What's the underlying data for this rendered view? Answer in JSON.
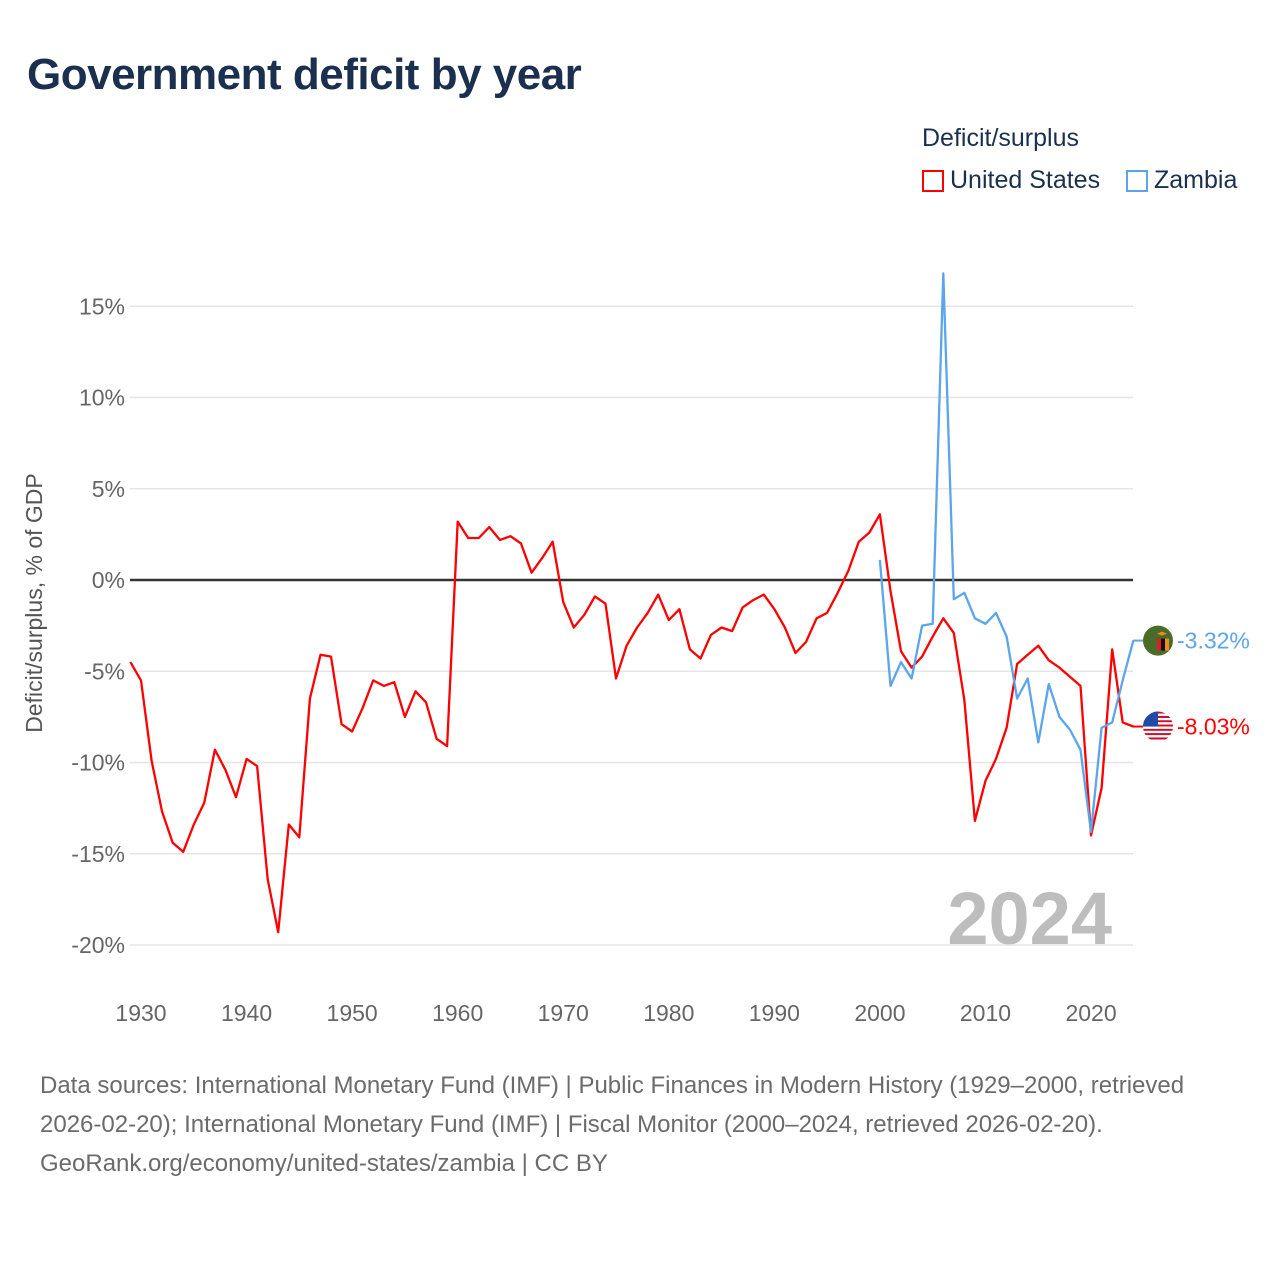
{
  "title": "Government deficit by year",
  "legend": {
    "title": "Deficit/surplus",
    "items": [
      {
        "label": "United States",
        "color": "#ff0000"
      },
      {
        "label": "Zambia",
        "color": "#5aa5ec"
      }
    ]
  },
  "year_watermark": "2024",
  "footer": {
    "sources": "Data sources: International Monetary Fund (IMF) | Public Finances in Modern History (1929–2000, retrieved 2026-02-20); International Monetary Fund (IMF) | Fiscal Monitor (2000–2024, retrieved 2026-02-20).",
    "credit": "GeoRank.org/economy/united-states/zambia | CC BY"
  },
  "chart_data": {
    "type": "line",
    "title": "Government deficit by year",
    "xlabel": "",
    "ylabel": "Deficit/surplus, % of GDP",
    "xlim": [
      1929,
      2024
    ],
    "ylim": [
      -20,
      17
    ],
    "x_ticks": [
      1930,
      1940,
      1950,
      1960,
      1970,
      1980,
      1990,
      2000,
      2010,
      2020
    ],
    "x_tick_labels": [
      "1930",
      "1940",
      "1950",
      "1960",
      "1970",
      "1980",
      "1990",
      "2000",
      "2010",
      "2020"
    ],
    "y_ticks": [
      15,
      10,
      5,
      0,
      -5,
      -10,
      -15,
      -20
    ],
    "y_tick_labels": [
      "15%",
      "10%",
      "5%",
      "0%",
      "-5%",
      "-10%",
      "-15%",
      "-20%"
    ],
    "grid": true,
    "legend_position": "top-right",
    "series": [
      {
        "name": "United States",
        "color": "#ff0000",
        "start_year": 1929,
        "end_label": "-8.03%",
        "values": [
          -4.5,
          -5.5,
          -9.9,
          -12.7,
          -14.4,
          -14.9,
          -13.4,
          -12.2,
          -9.3,
          -10.4,
          -11.9,
          -9.8,
          -10.2,
          -16.4,
          -19.3,
          -13.4,
          -14.1,
          -6.5,
          -4.1,
          -4.2,
          -7.9,
          -8.3,
          -7.0,
          -5.5,
          -5.8,
          -5.6,
          -7.5,
          -6.1,
          -6.7,
          -8.7,
          -9.1,
          3.2,
          2.3,
          2.3,
          2.9,
          2.2,
          2.4,
          2.0,
          0.4,
          1.2,
          2.1,
          -1.2,
          -2.6,
          -1.9,
          -0.9,
          -1.3,
          -5.4,
          -3.6,
          -2.6,
          -1.8,
          -0.8,
          -2.2,
          -1.6,
          -3.8,
          -4.3,
          -3.0,
          -2.6,
          -2.8,
          -1.5,
          -1.1,
          -0.8,
          -1.6,
          -2.6,
          -4.0,
          -3.4,
          -2.1,
          -1.8,
          -0.7,
          0.5,
          2.1,
          2.6,
          3.6,
          -0.6,
          -3.9,
          -4.8,
          -4.2,
          -3.1,
          -2.1,
          -2.9,
          -6.6,
          -13.2,
          -11.0,
          -9.8,
          -8.1,
          -4.6,
          -4.1,
          -3.6,
          -4.4,
          -4.8,
          -5.3,
          -5.8,
          -14.0,
          -11.4,
          -3.8,
          -7.8,
          -8.03
        ]
      },
      {
        "name": "Zambia",
        "color": "#5aa5ec",
        "start_year": 2000,
        "end_label": "-3.32%",
        "values": [
          1.1,
          -5.8,
          -4.5,
          -5.4,
          -2.5,
          -2.4,
          16.8,
          -1.05,
          -0.7,
          -2.1,
          -2.4,
          -1.8,
          -3.1,
          -6.5,
          -5.4,
          -8.9,
          -5.7,
          -7.5,
          -8.2,
          -9.3,
          -13.8,
          -8.1,
          -7.8,
          -5.5,
          -3.32
        ]
      }
    ]
  }
}
